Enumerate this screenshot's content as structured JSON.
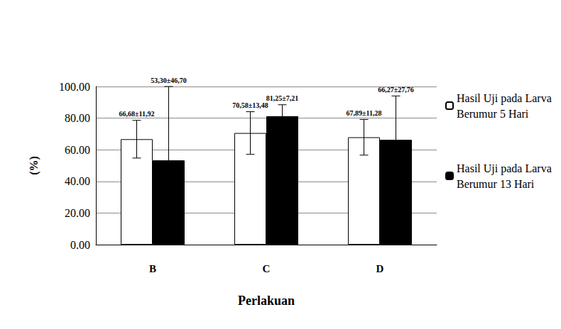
{
  "chart_data": {
    "type": "bar",
    "x_label": "Perlakuan",
    "y_label": "(%)",
    "categories": [
      "B",
      "C",
      "D"
    ],
    "series": [
      {
        "name": "Hasil Uji pada Larva Berumur 5 Hari",
        "color": "#ffffff",
        "values": [
          66.68,
          70.58,
          67.89
        ],
        "errors": [
          11.92,
          13.48,
          11.28
        ],
        "value_labels": [
          "66,68±11,92",
          "70,58±13,48",
          "67,89±11,28"
        ]
      },
      {
        "name": "Hasil Uji pada Larva Berumur 13 Hari",
        "color": "#000000",
        "values": [
          53.3,
          81.25,
          66.27
        ],
        "errors": [
          46.7,
          7.21,
          27.76
        ],
        "value_labels": [
          "53,30±46,70",
          "81,25±7,21",
          "66,27±27,76"
        ]
      }
    ],
    "ylim": [
      0,
      100
    ],
    "yticks": [
      {
        "value": 0,
        "label": "0.00"
      },
      {
        "value": 20,
        "label": "20.00"
      },
      {
        "value": 40,
        "label": "40.00"
      },
      {
        "value": 60,
        "label": "60.00"
      },
      {
        "value": 80,
        "label": "80.00"
      },
      {
        "value": 100,
        "label": "100.00"
      }
    ],
    "grid": true,
    "legend": "right",
    "data_labels": true
  }
}
